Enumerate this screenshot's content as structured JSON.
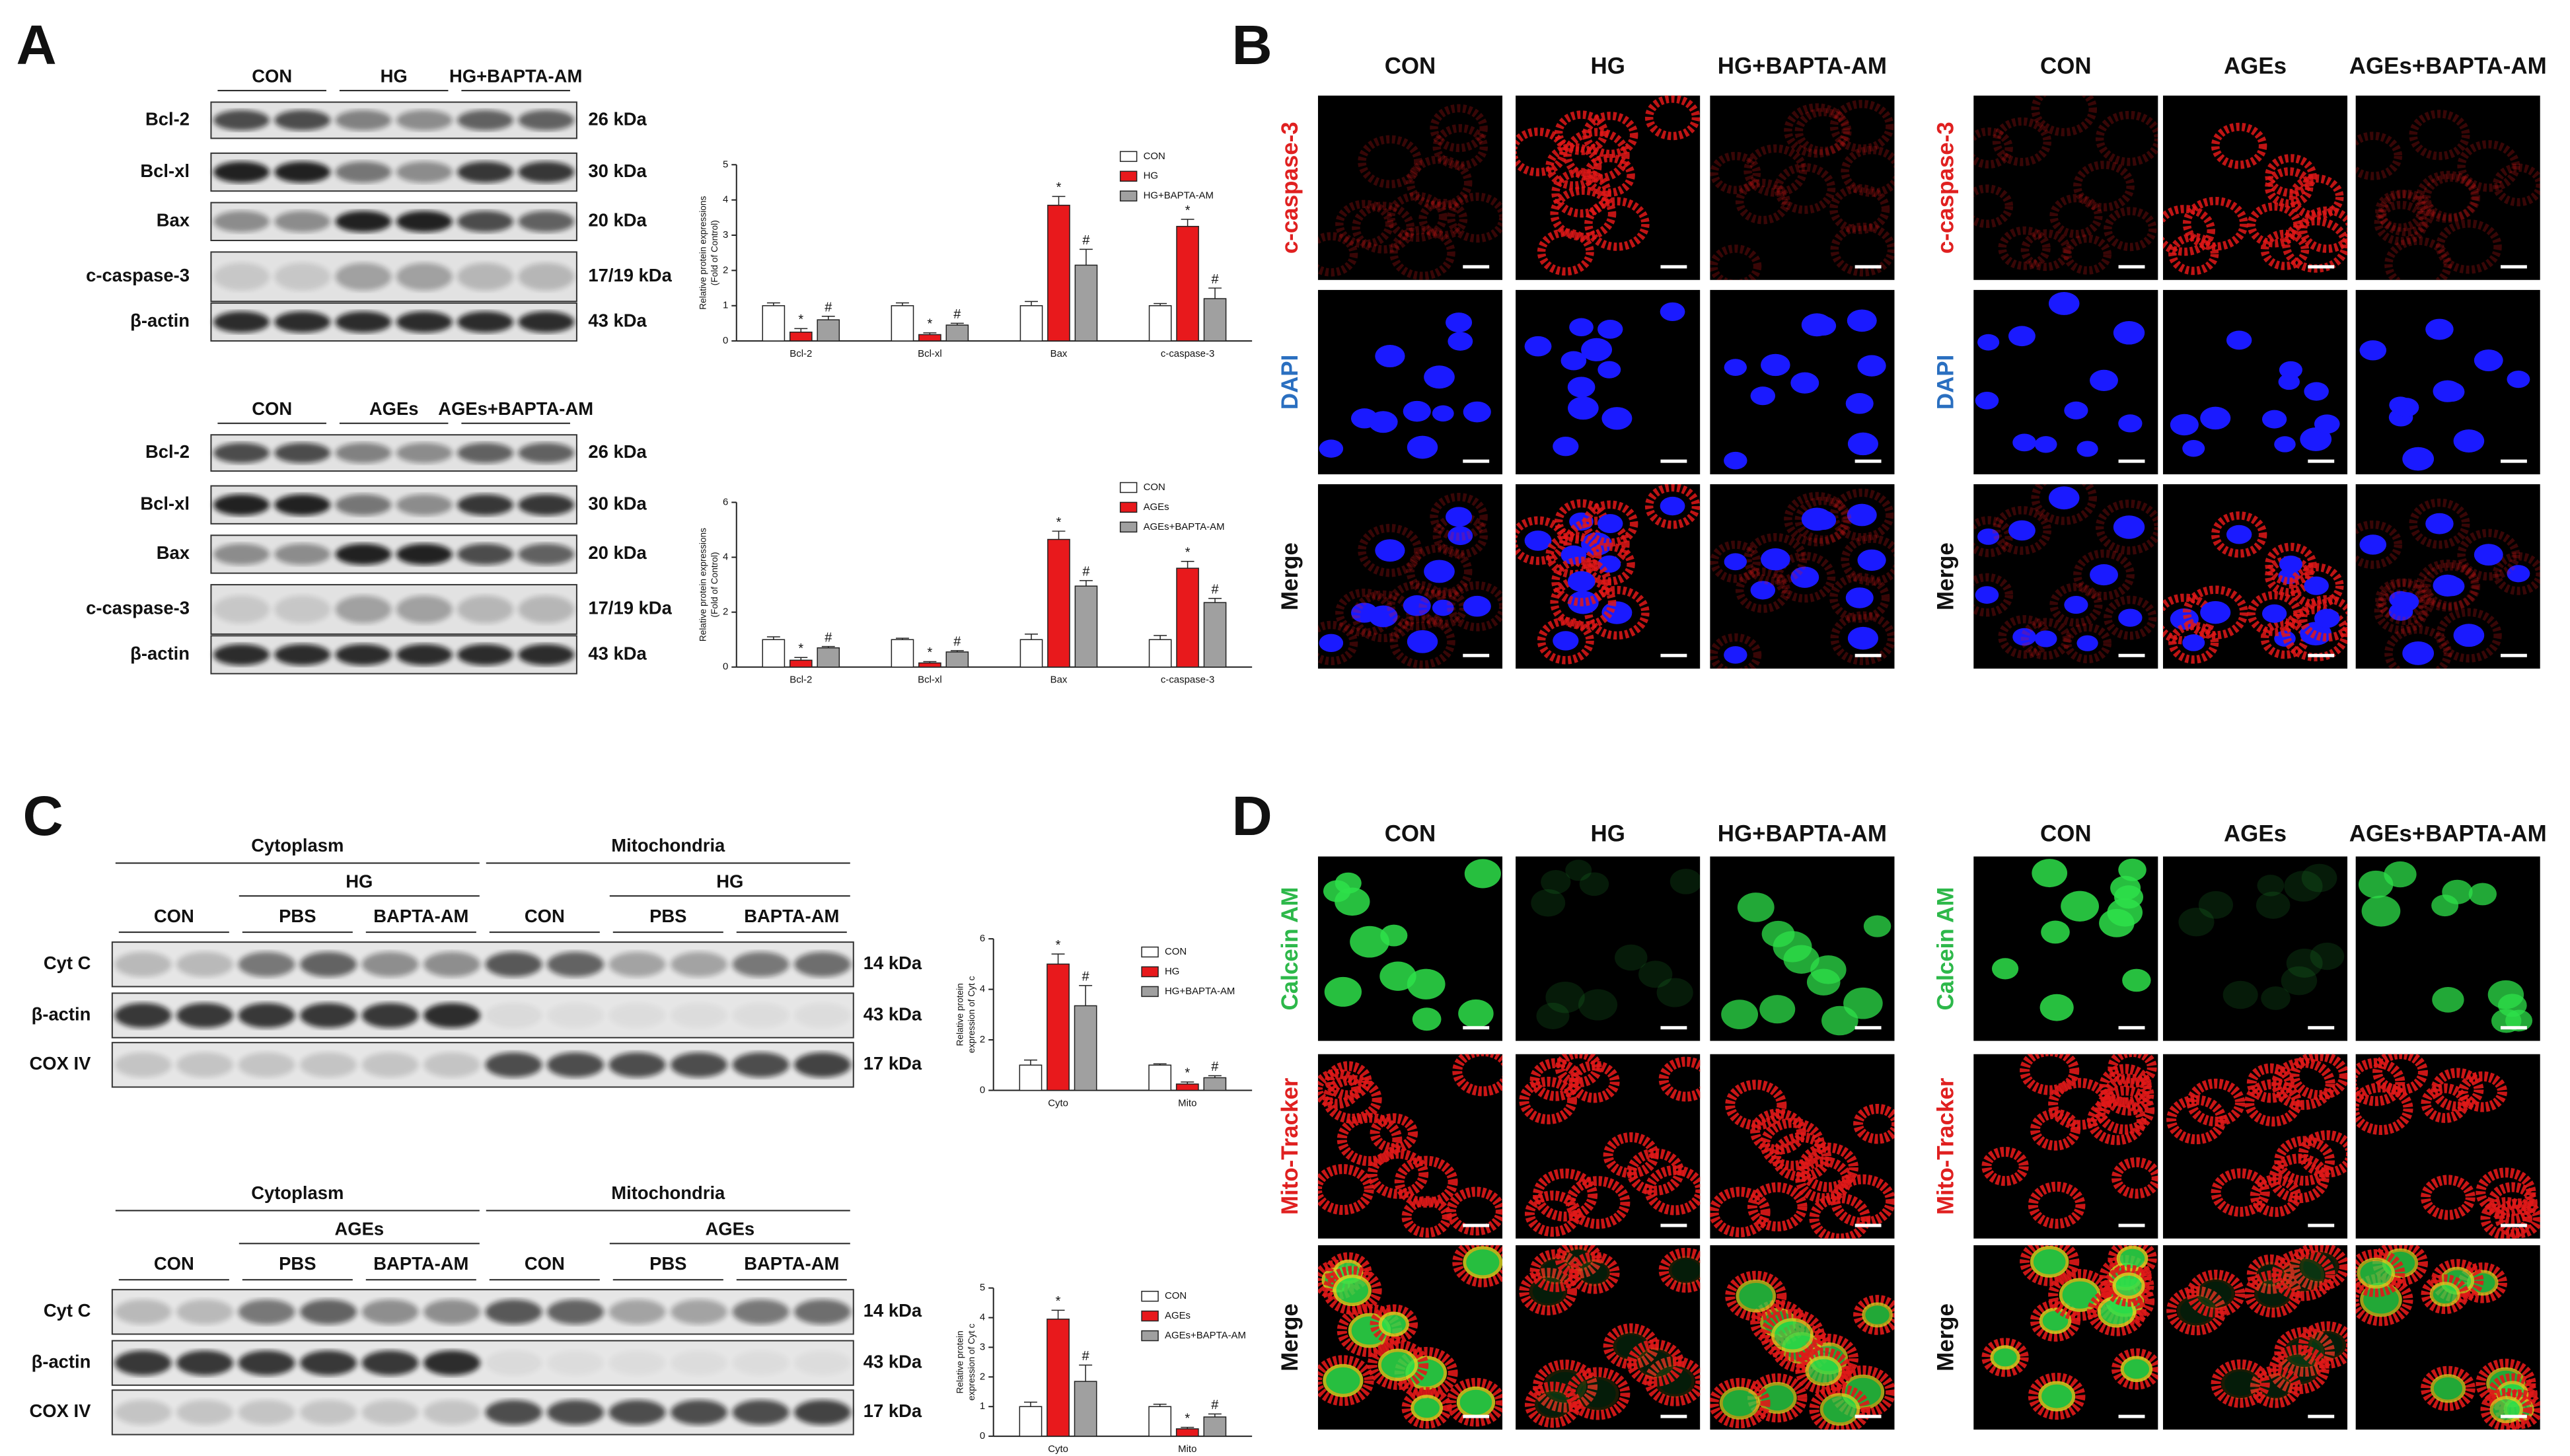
{
  "panel_labels": [
    "A",
    "B",
    "C",
    "D"
  ],
  "blots": [
    {
      "lanes": [
        "CON",
        "HG",
        "HG+BAPTA-AM"
      ],
      "rows": [
        {
          "protein": "Bcl-2",
          "size": "26 kDa"
        },
        {
          "protein": "Bcl-xl",
          "size": "30 kDa"
        },
        {
          "protein": "Bax",
          "size": "20 kDa"
        },
        {
          "protein": "c-caspase-3",
          "size": "17/19 kDa"
        },
        {
          "protein": "β-actin",
          "size": "43 kDa"
        }
      ]
    },
    {
      "lanes": [
        "CON",
        "AGEs",
        "AGEs+BAPTA-AM"
      ],
      "rows": [
        {
          "protein": "Bcl-2",
          "size": "26 kDa"
        },
        {
          "protein": "Bcl-xl",
          "size": "30 kDa"
        },
        {
          "protein": "Bax",
          "size": "20 kDa"
        },
        {
          "protein": "c-caspase-3",
          "size": "17/19 kDa"
        },
        {
          "protein": "β-actin",
          "size": "43 kDa"
        }
      ]
    }
  ],
  "fractionation": [
    {
      "compartments": [
        {
          "name": "Cytoplasm",
          "treatment": "HG",
          "lanes": [
            "CON",
            "PBS",
            "BAPTA-AM"
          ]
        },
        {
          "name": "Mitochondria",
          "treatment": "HG",
          "lanes": [
            "CON",
            "PBS",
            "BAPTA-AM"
          ]
        }
      ],
      "rows": [
        {
          "protein": "Cyt C",
          "size": "14 kDa"
        },
        {
          "protein": "β-actin",
          "size": "43 kDa"
        },
        {
          "protein": "COX IV",
          "size": "17 kDa"
        }
      ]
    },
    {
      "compartments": [
        {
          "name": "Cytoplasm",
          "treatment": "AGEs",
          "lanes": [
            "CON",
            "PBS",
            "BAPTA-AM"
          ]
        },
        {
          "name": "Mitochondria",
          "treatment": "AGEs",
          "lanes": [
            "CON",
            "PBS",
            "BAPTA-AM"
          ]
        }
      ],
      "rows": [
        {
          "protein": "Cyt C",
          "size": "14 kDa"
        },
        {
          "protein": "β-actin",
          "size": "43 kDa"
        },
        {
          "protein": "COX IV",
          "size": "17 kDa"
        }
      ]
    }
  ],
  "imaging": [
    {
      "blocks": [
        {
          "columns": [
            "CON",
            "HG",
            "HG+BAPTA-AM"
          ],
          "rows": [
            "c-caspase-3",
            "DAPI",
            "Merge"
          ]
        },
        {
          "columns": [
            "CON",
            "AGEs",
            "AGEs+BAPTA-AM"
          ],
          "rows": [
            "c-caspase-3",
            "DAPI",
            "Merge"
          ]
        }
      ]
    },
    {
      "blocks": [
        {
          "columns": [
            "CON",
            "HG",
            "HG+BAPTA-AM"
          ],
          "rows": [
            "Calcein AM",
            "Mito-Tracker",
            "Merge"
          ]
        },
        {
          "columns": [
            "CON",
            "AGEs",
            "AGEs+BAPTA-AM"
          ],
          "rows": [
            "Calcein AM",
            "Mito-Tracker",
            "Merge"
          ]
        }
      ]
    }
  ],
  "chart_data": [
    {
      "type": "bar",
      "y_label": [
        "Relative protein expressions",
        "(Fold of Control)"
      ],
      "categories": [
        "Bcl-2",
        "Bcl-xl",
        "Bax",
        "c-caspase-3"
      ],
      "ylim": [
        0,
        5
      ],
      "yticks": [
        0,
        1,
        2,
        3,
        4,
        5
      ],
      "series": [
        {
          "name": "CON",
          "color": "#ffffff",
          "values": [
            1,
            1,
            1,
            1
          ],
          "errors": [
            0.08,
            0.08,
            0.12,
            0.06
          ]
        },
        {
          "name": "HG",
          "color": "#e8191c",
          "values": [
            0.25,
            0.18,
            3.85,
            3.25
          ],
          "errors": [
            0.1,
            0.05,
            0.25,
            0.2
          ],
          "annotations": [
            "*",
            "*",
            "*",
            "*"
          ]
        },
        {
          "name": "HG+BAPTA-AM",
          "color": "#a0a0a0",
          "values": [
            0.6,
            0.45,
            2.15,
            1.2
          ],
          "errors": [
            0.1,
            0.05,
            0.45,
            0.3
          ],
          "annotations": [
            "#",
            "#",
            "#",
            "#"
          ]
        }
      ]
    },
    {
      "type": "bar",
      "y_label": [
        "Relative protein expressions",
        "(Fold of Control)"
      ],
      "categories": [
        "Bcl-2",
        "Bcl-xl",
        "Bax",
        "c-caspase-3"
      ],
      "ylim": [
        0,
        6
      ],
      "yticks": [
        0,
        2,
        4,
        6
      ],
      "series": [
        {
          "name": "CON",
          "color": "#ffffff",
          "values": [
            1,
            1,
            1,
            1
          ],
          "errors": [
            0.1,
            0.05,
            0.2,
            0.15
          ]
        },
        {
          "name": "AGEs",
          "color": "#e8191c",
          "values": [
            0.25,
            0.15,
            4.65,
            3.6
          ],
          "errors": [
            0.1,
            0.05,
            0.3,
            0.25
          ],
          "annotations": [
            "*",
            "*",
            "*",
            "*"
          ]
        },
        {
          "name": "AGEs+BAPTA-AM",
          "color": "#a0a0a0",
          "values": [
            0.7,
            0.55,
            2.95,
            2.35
          ],
          "errors": [
            0.05,
            0.05,
            0.2,
            0.15
          ],
          "annotations": [
            "#",
            "#",
            "#",
            "#"
          ]
        }
      ]
    },
    {
      "type": "bar",
      "y_label": [
        "Relative protein",
        "expression of Cyt c"
      ],
      "categories": [
        "Cyto",
        "Mito"
      ],
      "ylim": [
        0,
        6
      ],
      "yticks": [
        0,
        2,
        4,
        6
      ],
      "series": [
        {
          "name": "CON",
          "color": "#ffffff",
          "values": [
            1,
            1
          ],
          "errors": [
            0.2,
            0.05
          ]
        },
        {
          "name": "HG",
          "color": "#e8191c",
          "values": [
            5.0,
            0.25
          ],
          "errors": [
            0.4,
            0.08
          ],
          "annotations": [
            "*",
            "*"
          ]
        },
        {
          "name": "HG+BAPTA-AM",
          "color": "#a0a0a0",
          "values": [
            3.35,
            0.5
          ],
          "errors": [
            0.8,
            0.08
          ],
          "annotations": [
            "#",
            "#"
          ]
        }
      ]
    },
    {
      "type": "bar",
      "y_label": [
        "Relative protein",
        "expression of Cyt c"
      ],
      "categories": [
        "Cyto",
        "Mito"
      ],
      "ylim": [
        0,
        5
      ],
      "yticks": [
        0,
        1,
        2,
        3,
        4,
        5
      ],
      "series": [
        {
          "name": "CON",
          "color": "#ffffff",
          "values": [
            1,
            1
          ],
          "errors": [
            0.15,
            0.08
          ]
        },
        {
          "name": "AGEs",
          "color": "#e8191c",
          "values": [
            3.95,
            0.25
          ],
          "errors": [
            0.3,
            0.05
          ],
          "annotations": [
            "*",
            "*"
          ]
        },
        {
          "name": "AGEs+BAPTA-AM",
          "color": "#a0a0a0",
          "values": [
            1.85,
            0.65
          ],
          "errors": [
            0.55,
            0.1
          ],
          "annotations": [
            "#",
            "#"
          ]
        }
      ]
    }
  ]
}
